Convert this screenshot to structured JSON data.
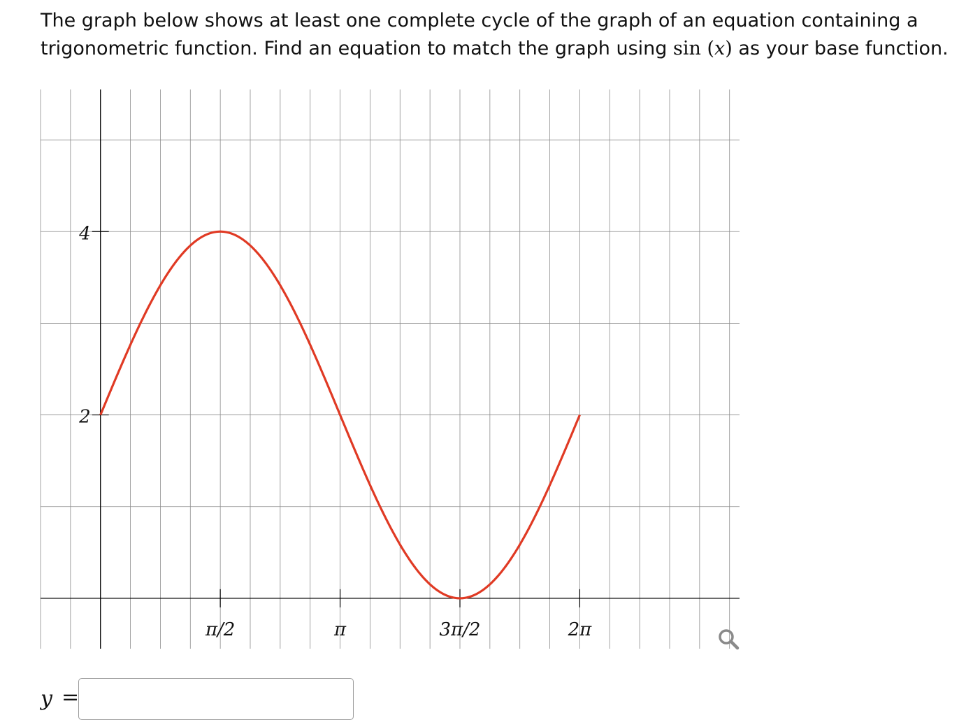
{
  "question": {
    "part1": "The graph below shows at least one complete cycle of the graph of an equation containing a trigonometric function. Find an equation to match the graph using ",
    "math_func": "sin",
    "math_open": "(",
    "math_var": "x",
    "math_close": ")",
    "part2": " as your base function."
  },
  "chart_data": {
    "type": "line",
    "title": "",
    "xlabel": "",
    "ylabel": "",
    "xlim": [
      -0.7854,
      8.3776
    ],
    "ylim": [
      -0.55,
      5.55
    ],
    "grid": true,
    "x_ticks": [
      {
        "value": 1.5708,
        "label": "π/2"
      },
      {
        "value": 3.1416,
        "label": "π"
      },
      {
        "value": 4.7124,
        "label": "3π/2"
      },
      {
        "value": 6.2832,
        "label": "2π"
      }
    ],
    "y_ticks": [
      {
        "value": 2,
        "label": "2"
      },
      {
        "value": 4,
        "label": "4"
      }
    ],
    "series": [
      {
        "function": "2*sin(x)+2",
        "x_range": [
          0,
          6.2832
        ],
        "color": "#e03a24"
      }
    ]
  },
  "answer": {
    "y_label": "y",
    "equals": "=",
    "value": "",
    "placeholder": ""
  },
  "icons": {
    "zoom": "magnifier-icon"
  },
  "colors": {
    "curve": "#e03a24",
    "grid": "#8c8c8c",
    "axis": "#000000"
  }
}
